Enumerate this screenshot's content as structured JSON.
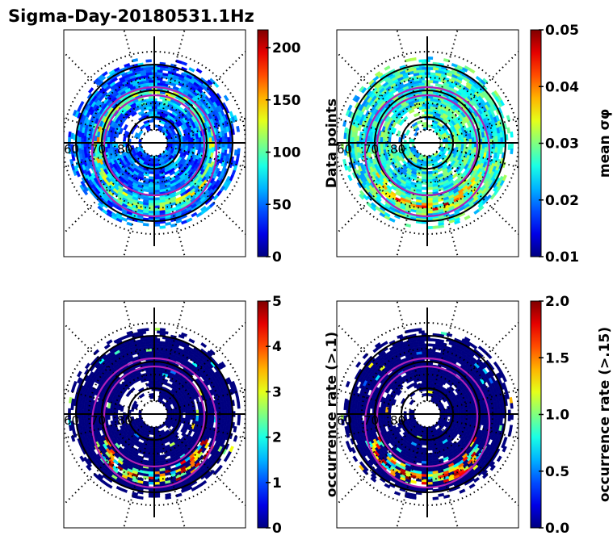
{
  "chart_data": [
    {
      "type": "heatmap",
      "projection": "polar (magnetic latitude / local time)",
      "title": "Sigma-Day-20180531.1Hz",
      "colormap": "jet",
      "colorbar": {
        "label": "Data points",
        "range": [
          0,
          217
        ],
        "ticks": [
          0,
          50,
          100,
          150,
          200
        ],
        "tick_labels": [
          "0",
          "50",
          "100",
          "150",
          "200"
        ]
      },
      "lat_labels": [
        "60",
        "70",
        "80"
      ],
      "description": "Counts per bin; ring 60-85 deg, mostly 10-120, higher (150-217) near 65-70 deg night side"
    },
    {
      "type": "heatmap",
      "projection": "polar (magnetic latitude / local time)",
      "colormap": "jet",
      "colorbar": {
        "label": "mean σφ",
        "range": [
          0.01,
          0.05
        ],
        "ticks": [
          0.01,
          0.02,
          0.03,
          0.04,
          0.05
        ],
        "tick_labels": [
          "0.01",
          "0.02",
          "0.03",
          "0.04",
          "0.05"
        ]
      },
      "lat_labels": [
        "60",
        "70",
        "80"
      ],
      "description": "Mean sigma-phi per bin, mostly 0.02-0.035, up to 0.05 on night side auroral zone"
    },
    {
      "type": "heatmap",
      "projection": "polar (magnetic latitude / local time)",
      "colormap": "jet",
      "colorbar": {
        "label": "occurrence rate (>.1)",
        "range": [
          0,
          5
        ],
        "ticks": [
          0,
          1,
          2,
          3,
          4,
          5
        ],
        "tick_labels": [
          "0",
          "1",
          "2",
          "3",
          "4",
          "5"
        ]
      },
      "lat_labels": [
        "60",
        "70",
        "80"
      ],
      "description": "Mostly 0; elevated (2-5) bins along night-side auroral oval 65-75 deg"
    },
    {
      "type": "heatmap",
      "projection": "polar (magnetic latitude / local time)",
      "colormap": "jet",
      "colorbar": {
        "label": "occurrence rate (>.15)",
        "range": [
          0,
          2.0
        ],
        "ticks": [
          0,
          0.5,
          1.0,
          1.5,
          2.0
        ],
        "tick_labels": [
          "0.0",
          "0.5",
          "1.0",
          "1.5",
          "2.0"
        ]
      },
      "lat_labels": [
        "60",
        "70",
        "80"
      ],
      "description": "Mostly 0; elevated (1-2) bins along night-side auroral oval"
    }
  ]
}
